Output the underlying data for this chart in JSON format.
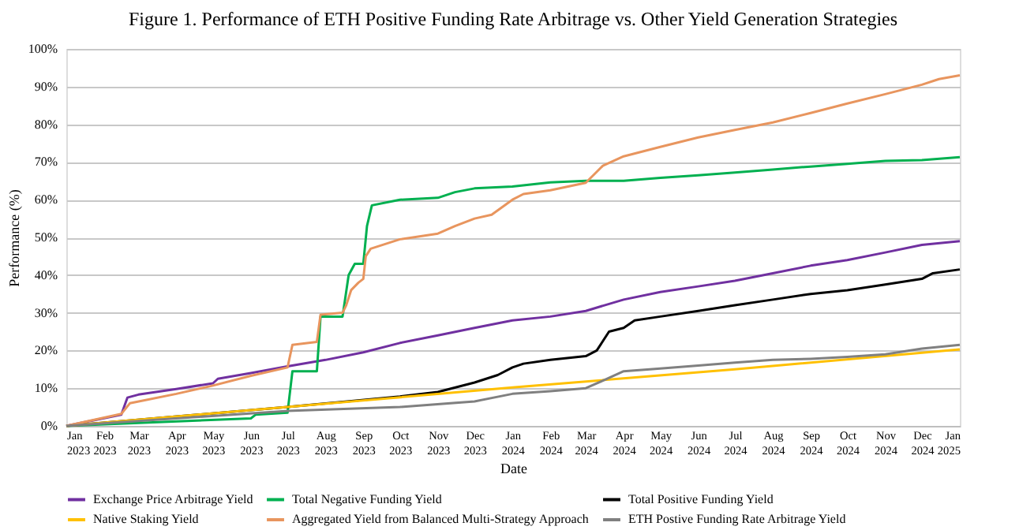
{
  "chart_data": {
    "type": "line",
    "title": "Figure 1. Performance of ETH Positive Funding Rate Arbitrage vs. Other Yield Generation Strategies",
    "xlabel": "Date",
    "ylabel": "Performance (%)",
    "xlim": [
      "2023-01-01",
      "2025-01-01"
    ],
    "xticks": [
      {
        "value": "2023-01-01",
        "label": "Jan 2023"
      },
      {
        "value": "2023-02-01",
        "label": "Feb 2023"
      },
      {
        "value": "2023-03-01",
        "label": "Mar 2023"
      },
      {
        "value": "2023-04-01",
        "label": "Apr 2023"
      },
      {
        "value": "2023-05-01",
        "label": "May 2023"
      },
      {
        "value": "2023-06-01",
        "label": "Jun 2023"
      },
      {
        "value": "2023-07-01",
        "label": "Jul 2023"
      },
      {
        "value": "2023-08-01",
        "label": "Aug 2023"
      },
      {
        "value": "2023-09-01",
        "label": "Sep 2023"
      },
      {
        "value": "2023-10-01",
        "label": "Oct 2023"
      },
      {
        "value": "2023-11-01",
        "label": "Nov 2023"
      },
      {
        "value": "2023-12-01",
        "label": "Dec 2023"
      },
      {
        "value": "2024-01-01",
        "label": "Jan 2024"
      },
      {
        "value": "2024-02-01",
        "label": "Feb 2024"
      },
      {
        "value": "2024-03-01",
        "label": "Mar 2024"
      },
      {
        "value": "2024-04-01",
        "label": "Apr 2024"
      },
      {
        "value": "2024-05-01",
        "label": "May 2024"
      },
      {
        "value": "2024-06-01",
        "label": "Jun 2024"
      },
      {
        "value": "2024-07-01",
        "label": "Jul 2024"
      },
      {
        "value": "2024-08-01",
        "label": "Aug 2024"
      },
      {
        "value": "2024-09-01",
        "label": "Sep 2024"
      },
      {
        "value": "2024-10-01",
        "label": "Oct 2024"
      },
      {
        "value": "2024-11-01",
        "label": "Nov 2024"
      },
      {
        "value": "2024-12-01",
        "label": "Dec 2024"
      },
      {
        "value": "2025-01-01",
        "label": "Jan 2025"
      }
    ],
    "ylim": [
      0,
      100
    ],
    "yticks": [
      {
        "value": 0,
        "label": "0%"
      },
      {
        "value": 10,
        "label": "10%"
      },
      {
        "value": 20,
        "label": "20%"
      },
      {
        "value": 30,
        "label": "30%"
      },
      {
        "value": 40,
        "label": "40%"
      },
      {
        "value": 50,
        "label": "50%"
      },
      {
        "value": 60,
        "label": "60%"
      },
      {
        "value": 70,
        "label": "70%"
      },
      {
        "value": 80,
        "label": "80%"
      },
      {
        "value": 90,
        "label": "90%"
      },
      {
        "value": 100,
        "label": "100%"
      }
    ],
    "grid": "y",
    "legend": "bottom",
    "series": [
      {
        "name": "Exchange Price Arbitrage Yield",
        "color": "#7030a0",
        "x": [
          "2023-01-01",
          "2023-02-15",
          "2023-02-20",
          "2023-03-01",
          "2023-04-01",
          "2023-05-01",
          "2023-05-05",
          "2023-06-01",
          "2023-07-01",
          "2023-08-01",
          "2023-09-01",
          "2023-10-01",
          "2023-11-01",
          "2023-12-01",
          "2024-01-01",
          "2024-02-01",
          "2024-03-01",
          "2024-04-01",
          "2024-05-01",
          "2024-06-01",
          "2024-07-01",
          "2024-08-01",
          "2024-09-01",
          "2024-10-01",
          "2024-11-01",
          "2024-12-01",
          "2025-01-01"
        ],
        "values": [
          0,
          3,
          7.5,
          8.3,
          9.8,
          11.3,
          12.5,
          14,
          15.8,
          17.5,
          19.5,
          22,
          24,
          26,
          28,
          29,
          30.5,
          33.5,
          35.5,
          37,
          38.5,
          40.5,
          42.5,
          44,
          46,
          48,
          49
        ]
      },
      {
        "name": "Total Negative Funding Yield",
        "color": "#00b050",
        "x": [
          "2023-01-01",
          "2023-03-01",
          "2023-06-01",
          "2023-06-05",
          "2023-07-01",
          "2023-07-05",
          "2023-07-25",
          "2023-07-28",
          "2023-08-15",
          "2023-08-20",
          "2023-08-25",
          "2023-09-01",
          "2023-09-04",
          "2023-09-08",
          "2023-10-01",
          "2023-11-01",
          "2023-11-15",
          "2023-12-01",
          "2024-01-01",
          "2024-02-01",
          "2024-03-01",
          "2024-04-01",
          "2024-05-01",
          "2024-06-01",
          "2024-07-01",
          "2024-08-01",
          "2024-09-01",
          "2024-10-01",
          "2024-11-01",
          "2024-12-01",
          "2025-01-01"
        ],
        "values": [
          0,
          0.8,
          2,
          3,
          3.5,
          14.5,
          14.5,
          29,
          29,
          40,
          43,
          43,
          53,
          58.5,
          60,
          60.5,
          62,
          63,
          63.5,
          64.6,
          65,
          65,
          65.8,
          66.5,
          67.2,
          68,
          68.8,
          69.5,
          70.3,
          70.5,
          71.3
        ]
      },
      {
        "name": "Total Positive Funding Yield",
        "color": "#000000",
        "x": [
          "2023-01-01",
          "2023-07-01",
          "2023-10-01",
          "2023-11-01",
          "2023-12-01",
          "2023-12-20",
          "2024-01-01",
          "2024-01-10",
          "2024-02-01",
          "2024-03-01",
          "2024-03-10",
          "2024-03-20",
          "2024-04-01",
          "2024-04-10",
          "2024-05-01",
          "2024-06-01",
          "2024-07-01",
          "2024-08-01",
          "2024-09-01",
          "2024-10-01",
          "2024-11-01",
          "2024-12-01",
          "2024-12-10",
          "2025-01-01"
        ],
        "values": [
          0,
          5,
          7.8,
          9,
          11.5,
          13.5,
          15.5,
          16.5,
          17.5,
          18.5,
          20,
          25,
          26,
          28,
          29,
          30.5,
          32,
          33.5,
          35,
          36,
          37.5,
          39,
          40.5,
          41.5
        ]
      },
      {
        "name": "Native Staking Yield",
        "color": "#ffc000",
        "x": [
          "2023-01-01",
          "2023-07-01",
          "2024-01-01",
          "2024-07-01",
          "2025-01-01"
        ],
        "values": [
          0,
          5,
          10.2,
          15,
          20.3
        ]
      },
      {
        "name": "Aggregated Yield from Balanced Multi-Strategy Approach",
        "color": "#e8955e",
        "x": [
          "2023-01-01",
          "2023-02-15",
          "2023-02-22",
          "2023-04-01",
          "2023-05-01",
          "2023-06-01",
          "2023-07-01",
          "2023-07-05",
          "2023-07-25",
          "2023-07-28",
          "2023-08-15",
          "2023-08-18",
          "2023-08-22",
          "2023-08-28",
          "2023-09-01",
          "2023-09-03",
          "2023-09-07",
          "2023-10-01",
          "2023-11-01",
          "2023-11-15",
          "2023-12-01",
          "2023-12-15",
          "2024-01-01",
          "2024-01-10",
          "2024-02-01",
          "2024-03-01",
          "2024-03-15",
          "2024-04-01",
          "2024-05-01",
          "2024-06-01",
          "2024-07-01",
          "2024-08-01",
          "2024-09-01",
          "2024-10-01",
          "2024-11-01",
          "2024-12-01",
          "2024-12-15",
          "2025-01-01"
        ],
        "values": [
          0,
          3.2,
          6,
          8.5,
          10.7,
          13.3,
          15.5,
          21.5,
          22.3,
          29.5,
          30,
          32,
          36,
          38,
          39,
          45,
          47,
          49.5,
          51,
          53,
          55,
          56,
          60,
          61.5,
          62.5,
          64.5,
          69,
          71.5,
          74,
          76.5,
          78.5,
          80.5,
          83,
          85.5,
          88,
          90.5,
          92,
          93
        ]
      },
      {
        "name": "ETH Postive Funding Rate Arbitrage Yield",
        "color": "#808080",
        "x": [
          "2023-01-01",
          "2023-07-01",
          "2023-10-01",
          "2023-12-01",
          "2024-01-01",
          "2024-02-01",
          "2024-03-01",
          "2024-03-15",
          "2024-04-01",
          "2024-05-01",
          "2024-06-01",
          "2024-07-01",
          "2024-08-01",
          "2024-09-01",
          "2024-10-01",
          "2024-11-01",
          "2024-12-01",
          "2025-01-01"
        ],
        "values": [
          0,
          4,
          5,
          6.5,
          8.5,
          9.2,
          10,
          12,
          14.5,
          15.2,
          16,
          16.8,
          17.5,
          17.8,
          18.3,
          19,
          20.5,
          21.5
        ]
      }
    ]
  }
}
